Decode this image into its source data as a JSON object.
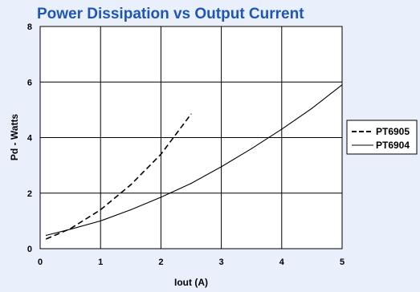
{
  "chart_data": {
    "type": "line",
    "title": "Power Dissipation vs Output Current",
    "xlabel": "Iout  (A)",
    "ylabel": "Pd - Watts",
    "xlim": [
      0,
      5
    ],
    "ylim": [
      0,
      8
    ],
    "x_ticks": [
      "0",
      "1",
      "2",
      "3",
      "4",
      "5"
    ],
    "y_ticks": [
      "0",
      "2",
      "4",
      "6",
      "8"
    ],
    "grid": true,
    "legend_position": "right",
    "series": [
      {
        "name": "PT6905",
        "style": "dashed",
        "color": "#000000",
        "x": [
          0.1,
          0.5,
          1.0,
          1.5,
          2.0,
          2.5
        ],
        "y": [
          0.35,
          0.72,
          1.4,
          2.3,
          3.4,
          4.85
        ]
      },
      {
        "name": "PT6904",
        "style": "solid",
        "color": "#000000",
        "x": [
          0.1,
          0.5,
          1.0,
          1.5,
          2.0,
          2.5,
          3.0,
          3.5,
          4.0,
          4.5,
          5.0
        ],
        "y": [
          0.48,
          0.7,
          1.0,
          1.4,
          1.85,
          2.35,
          2.95,
          3.6,
          4.3,
          5.05,
          5.9
        ]
      }
    ]
  },
  "colors": {
    "background": "#e9f0fb",
    "plot_area": "#ffffff",
    "title": "#1f56b5"
  }
}
